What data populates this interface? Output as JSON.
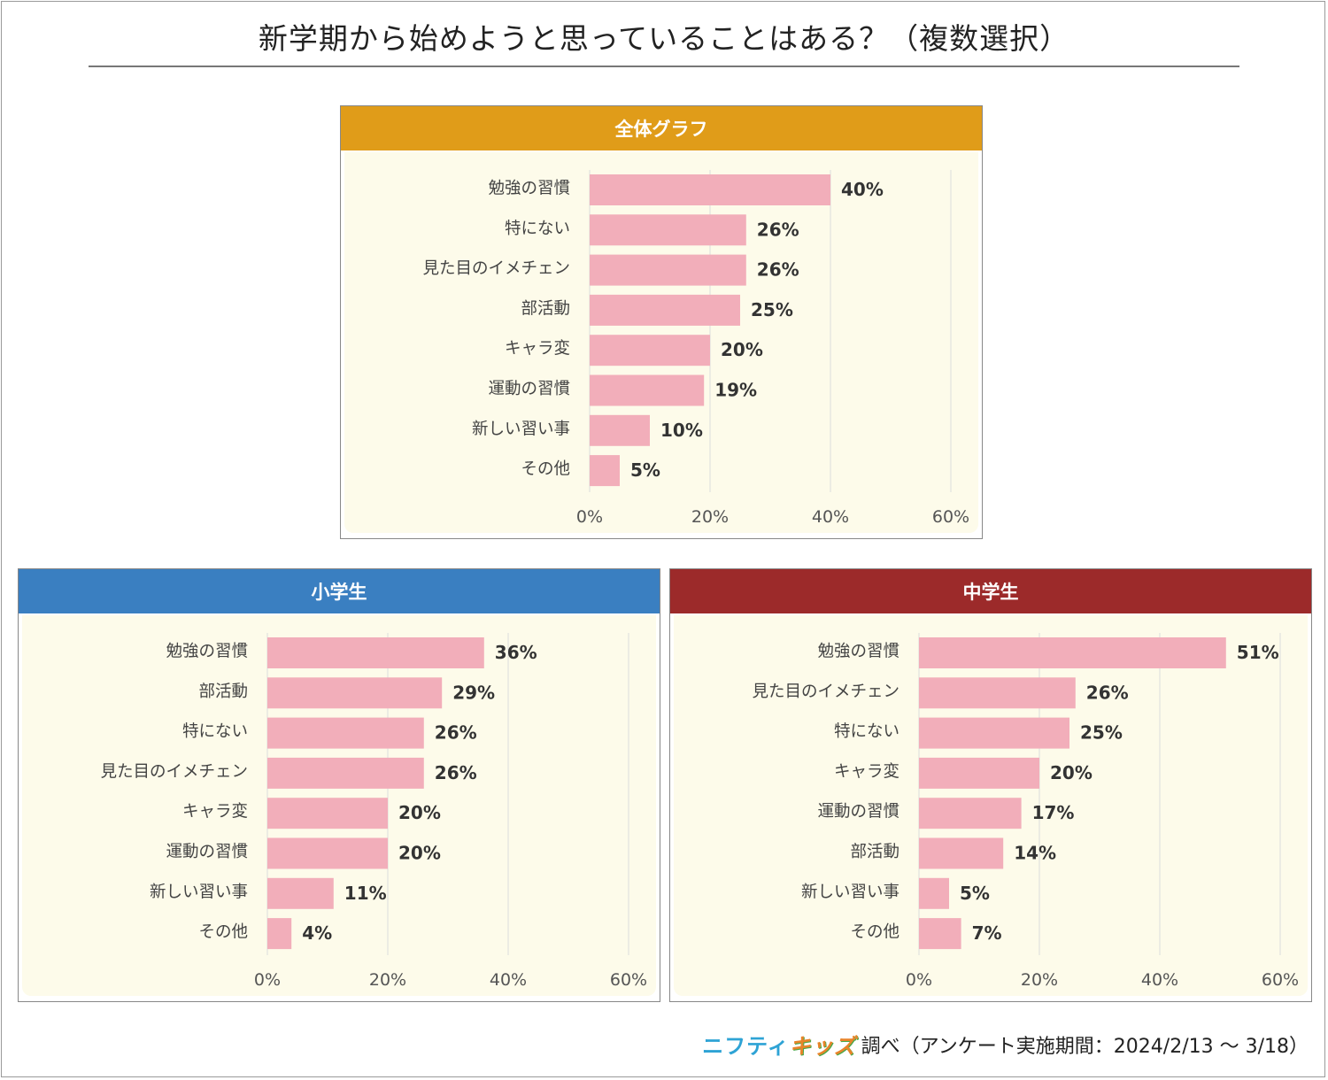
{
  "title": "新学期から始めようと思っていることはある？（複数選択）",
  "footer": {
    "logo_part1": "ニフティ",
    "logo_part2": "キッズ",
    "text": "調べ（アンケート実施期間：2024/2/13 ～ 3/18）"
  },
  "colors": {
    "bar": "#f2aeba",
    "overall_header": "#e09c19",
    "elementary_header": "#3a7fc1",
    "junior_header": "#9c2a2a",
    "plot_bg": "#fdfbea",
    "grid": "#dcdcdc"
  },
  "chart_data": [
    {
      "type": "bar",
      "orientation": "horizontal",
      "title": "全体グラフ",
      "categories": [
        "勉強の習慣",
        "特にない",
        "見た目のイメチェン",
        "部活動",
        "キャラ変",
        "運動の習慣",
        "新しい習い事",
        "その他"
      ],
      "values": [
        40,
        26,
        26,
        25,
        20,
        19,
        10,
        5
      ],
      "value_labels": [
        "40%",
        "26%",
        "26%",
        "25%",
        "20%",
        "19%",
        "10%",
        "5%"
      ],
      "xlim": [
        0,
        60
      ],
      "xticks": [
        0,
        20,
        40,
        60
      ],
      "xtick_labels": [
        "0%",
        "20%",
        "40%",
        "60%"
      ],
      "grid": true
    },
    {
      "type": "bar",
      "orientation": "horizontal",
      "title": "小学生",
      "categories": [
        "勉強の習慣",
        "部活動",
        "特にない",
        "見た目のイメチェン",
        "キャラ変",
        "運動の習慣",
        "新しい習い事",
        "その他"
      ],
      "values": [
        36,
        29,
        26,
        26,
        20,
        20,
        11,
        4
      ],
      "value_labels": [
        "36%",
        "29%",
        "26%",
        "26%",
        "20%",
        "20%",
        "11%",
        "4%"
      ],
      "xlim": [
        0,
        60
      ],
      "xticks": [
        0,
        20,
        40,
        60
      ],
      "xtick_labels": [
        "0%",
        "20%",
        "40%",
        "60%"
      ],
      "grid": true
    },
    {
      "type": "bar",
      "orientation": "horizontal",
      "title": "中学生",
      "categories": [
        "勉強の習慣",
        "見た目のイメチェン",
        "特にない",
        "キャラ変",
        "運動の習慣",
        "部活動",
        "新しい習い事",
        "その他"
      ],
      "values": [
        51,
        26,
        25,
        20,
        17,
        14,
        5,
        7
      ],
      "value_labels": [
        "51%",
        "26%",
        "25%",
        "20%",
        "17%",
        "14%",
        "5%",
        "7%"
      ],
      "xlim": [
        0,
        60
      ],
      "xticks": [
        0,
        20,
        40,
        60
      ],
      "xtick_labels": [
        "0%",
        "20%",
        "40%",
        "60%"
      ],
      "grid": true
    }
  ]
}
